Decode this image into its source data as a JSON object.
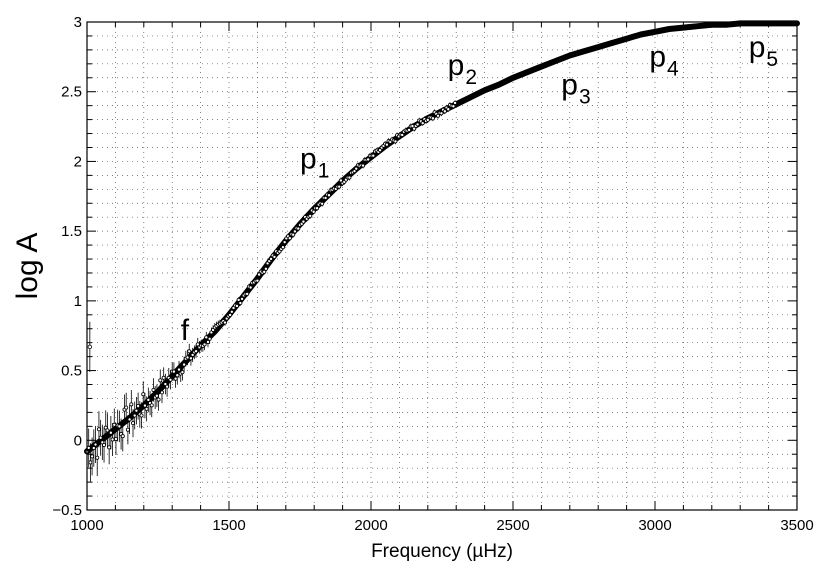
{
  "chart_data": {
    "type": "scatter",
    "xlabel": "Frequency (µHz)",
    "ylabel": "log A",
    "xlim": [
      1000,
      3500
    ],
    "ylim": [
      -0.5,
      3
    ],
    "grid": true,
    "x_ticks": [
      1000,
      1500,
      2000,
      2500,
      3000,
      3500
    ],
    "y_ticks": [
      -0.5,
      0,
      0.5,
      1,
      1.5,
      2,
      2.5,
      3
    ],
    "x_tick_labels": [
      "1000",
      "1500",
      "2000",
      "2500",
      "3000",
      "3500"
    ],
    "y_tick_labels": [
      "−0.5",
      "0",
      "0.5",
      "1",
      "1.5",
      "2",
      "2.5",
      "3"
    ],
    "color": "#000000",
    "series": [
      {
        "x": [
          1000,
          1050,
          1100,
          1150,
          1200,
          1250,
          1300,
          1350,
          1400,
          1450,
          1500,
          1550,
          1600,
          1650,
          1700,
          1750,
          1800,
          1850,
          1900,
          1950,
          2000,
          2050,
          2100,
          2150,
          2200,
          2250,
          2300,
          2350,
          2400,
          2450,
          2500,
          2550,
          2600,
          2650,
          2700,
          2750,
          2800,
          2850,
          2900,
          2950,
          3000,
          3050,
          3100,
          3150,
          3200,
          3250,
          3300,
          3350,
          3400,
          3450,
          3500
        ],
        "y": [
          -0.08,
          0.0,
          0.08,
          0.16,
          0.25,
          0.35,
          0.46,
          0.57,
          0.68,
          0.78,
          0.9,
          1.03,
          1.16,
          1.3,
          1.43,
          1.55,
          1.66,
          1.76,
          1.86,
          1.95,
          2.03,
          2.11,
          2.18,
          2.25,
          2.31,
          2.36,
          2.41,
          2.46,
          2.51,
          2.55,
          2.6,
          2.64,
          2.68,
          2.72,
          2.76,
          2.79,
          2.82,
          2.85,
          2.88,
          2.91,
          2.93,
          2.95,
          2.96,
          2.97,
          2.98,
          2.98,
          2.99,
          2.99,
          2.99,
          2.99,
          2.99
        ]
      }
    ],
    "outlier_points": [
      {
        "x": 1010,
        "y": 0.67
      }
    ],
    "annotations": [
      {
        "text": "f",
        "sub": "",
        "x": 1330,
        "y": 0.72
      },
      {
        "text": "p",
        "sub": "1",
        "x": 1750,
        "y": 1.95
      },
      {
        "text": "p",
        "sub": "2",
        "x": 2270,
        "y": 2.62
      },
      {
        "text": "p",
        "sub": "3",
        "x": 2670,
        "y": 2.48
      },
      {
        "text": "p",
        "sub": "4",
        "x": 2980,
        "y": 2.68
      },
      {
        "text": "p",
        "sub": "5",
        "x": 3330,
        "y": 2.75
      }
    ]
  }
}
